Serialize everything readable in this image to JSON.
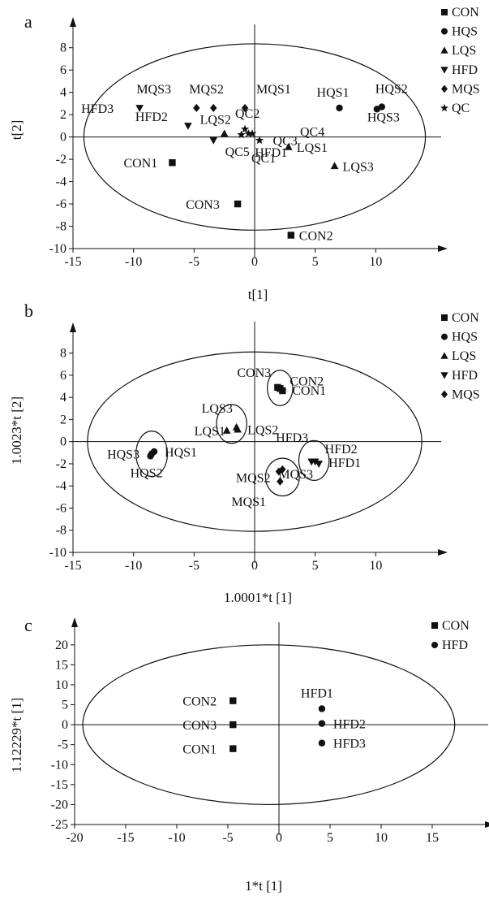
{
  "figure": {
    "background": "#ffffff",
    "ink": "#111111"
  },
  "chart_data": [
    {
      "panel_label": "a",
      "type": "scatter",
      "xlabel": "t[1]",
      "ylabel": "t[2]",
      "xlim": [
        -15,
        15
      ],
      "ylim": [
        -10,
        9
      ],
      "xticks": [
        -15,
        -10,
        -5,
        0,
        5,
        10
      ],
      "yticks": [
        -10,
        -8,
        -6,
        -4,
        -2,
        0,
        2,
        4,
        6,
        8
      ],
      "grid": false,
      "legend_position": "top-right",
      "legend": [
        {
          "name": "CON",
          "marker": "square"
        },
        {
          "name": "HQS",
          "marker": "circle"
        },
        {
          "name": "LQS",
          "marker": "triangle-up"
        },
        {
          "name": "HFD",
          "marker": "triangle-down"
        },
        {
          "name": "MQS",
          "marker": "diamond"
        },
        {
          "name": "QC",
          "marker": "star"
        }
      ],
      "series": [
        {
          "name": "CON",
          "marker": "square",
          "points": [
            {
              "label": "CON1",
              "x": -6.8,
              "y": -2.3
            },
            {
              "label": "CON2",
              "x": 3.0,
              "y": -8.8
            },
            {
              "label": "CON3",
              "x": -1.4,
              "y": -6.0
            }
          ]
        },
        {
          "name": "HQS",
          "marker": "circle",
          "points": [
            {
              "label": "HQS1",
              "x": 7.0,
              "y": 2.6
            },
            {
              "label": "HQS2",
              "x": 10.5,
              "y": 2.7
            },
            {
              "label": "HQS3",
              "x": 10.1,
              "y": 2.5
            }
          ]
        },
        {
          "name": "LQS",
          "marker": "triangle-up",
          "points": [
            {
              "label": "LQS1",
              "x": 2.8,
              "y": -0.9
            },
            {
              "label": "LQS2",
              "x": -2.5,
              "y": 0.3
            },
            {
              "label": "LQS3",
              "x": 6.6,
              "y": -2.6
            }
          ]
        },
        {
          "name": "HFD",
          "marker": "triangle-down",
          "points": [
            {
              "label": "HFD1",
              "x": -3.4,
              "y": -0.3
            },
            {
              "label": "HFD2",
              "x": -5.5,
              "y": 1.0
            },
            {
              "label": "HFD3",
              "x": -9.5,
              "y": 2.6
            }
          ]
        },
        {
          "name": "MQS",
          "marker": "diamond",
          "points": [
            {
              "label": "MQS1",
              "x": -0.8,
              "y": 2.6
            },
            {
              "label": "MQS2",
              "x": -3.4,
              "y": 2.6
            },
            {
              "label": "MQS3",
              "x": -4.8,
              "y": 2.6
            }
          ]
        },
        {
          "name": "QC",
          "marker": "star",
          "points": [
            {
              "label": "QC1",
              "x": 0.4,
              "y": -0.3
            },
            {
              "label": "QC2",
              "x": -0.8,
              "y": 0.7
            },
            {
              "label": "QC3",
              "x": -0.5,
              "y": 0.3
            },
            {
              "label": "QC4",
              "x": -0.2,
              "y": 0.3
            },
            {
              "label": "QC5",
              "x": -1.1,
              "y": 0.2
            }
          ]
        }
      ]
    },
    {
      "panel_label": "b",
      "type": "scatter",
      "xlabel": "1.0001*t [1]",
      "ylabel": "1.0023*t [2]",
      "xlim": [
        -15,
        15
      ],
      "ylim": [
        -10,
        9
      ],
      "xticks": [
        -15,
        -10,
        -5,
        0,
        5,
        10
      ],
      "yticks": [
        -10,
        -8,
        -6,
        -4,
        -2,
        0,
        2,
        4,
        6,
        8
      ],
      "grid": false,
      "legend_position": "top-right",
      "legend": [
        {
          "name": "CON",
          "marker": "square"
        },
        {
          "name": "HQS",
          "marker": "circle"
        },
        {
          "name": "LQS",
          "marker": "triangle-up"
        },
        {
          "name": "HFD",
          "marker": "triangle-down"
        },
        {
          "name": "MQS",
          "marker": "diamond"
        }
      ],
      "series": [
        {
          "name": "CON",
          "marker": "square",
          "points": [
            {
              "label": "CON1",
              "x": 2.3,
              "y": 4.6
            },
            {
              "label": "CON2",
              "x": 2.1,
              "y": 4.8
            },
            {
              "label": "CON3",
              "x": 1.9,
              "y": 4.9
            }
          ]
        },
        {
          "name": "HQS",
          "marker": "circle",
          "points": [
            {
              "label": "HQS1",
              "x": -8.3,
              "y": -0.9
            },
            {
              "label": "HQS2",
              "x": -8.6,
              "y": -1.3
            },
            {
              "label": "HQS3",
              "x": -8.5,
              "y": -1.1
            }
          ]
        },
        {
          "name": "LQS",
          "marker": "triangle-up",
          "points": [
            {
              "label": "LQS1",
              "x": -2.3,
              "y": 1.0
            },
            {
              "label": "LQS2",
              "x": -1.4,
              "y": 1.1
            },
            {
              "label": "LQS3",
              "x": -1.5,
              "y": 1.3
            }
          ]
        },
        {
          "name": "HFD",
          "marker": "triangle-down",
          "points": [
            {
              "label": "HFD1",
              "x": 5.3,
              "y": -2.0
            },
            {
              "label": "HFD2",
              "x": 5.0,
              "y": -1.8
            },
            {
              "label": "HFD3",
              "x": 4.7,
              "y": -1.8
            }
          ]
        },
        {
          "name": "MQS",
          "marker": "diamond",
          "points": [
            {
              "label": "MQS1",
              "x": 2.1,
              "y": -3.6
            },
            {
              "label": "MQS2",
              "x": 2.0,
              "y": -2.7
            },
            {
              "label": "MQS3",
              "x": 2.3,
              "y": -2.5
            }
          ]
        }
      ],
      "group_ellipses": [
        "CON",
        "HQS",
        "LQS",
        "HFD",
        "MQS"
      ]
    },
    {
      "panel_label": "c",
      "type": "scatter",
      "xlabel": "1*t [1]",
      "ylabel": "1.12229*t [1]",
      "xlim": [
        -20,
        20
      ],
      "ylim": [
        -25,
        22
      ],
      "xticks": [
        -20,
        -15,
        -10,
        -5,
        0,
        5,
        10,
        15
      ],
      "yticks": [
        -25,
        -20,
        -15,
        -10,
        -5,
        0,
        5,
        10,
        15,
        20
      ],
      "grid": false,
      "legend_position": "top-right",
      "legend": [
        {
          "name": "CON",
          "marker": "square"
        },
        {
          "name": "HFD",
          "marker": "circle"
        }
      ],
      "series": [
        {
          "name": "CON",
          "marker": "square",
          "points": [
            {
              "label": "CON1",
              "x": -4.5,
              "y": -6.0
            },
            {
              "label": "CON2",
              "x": -4.5,
              "y": 6.0
            },
            {
              "label": "CON3",
              "x": -4.5,
              "y": 0.0
            }
          ]
        },
        {
          "name": "HFD",
          "marker": "circle",
          "points": [
            {
              "label": "HFD1",
              "x": 4.2,
              "y": 4.0
            },
            {
              "label": "HFD2",
              "x": 4.2,
              "y": 0.3
            },
            {
              "label": "HFD3",
              "x": 4.2,
              "y": -4.6
            }
          ]
        }
      ]
    }
  ]
}
